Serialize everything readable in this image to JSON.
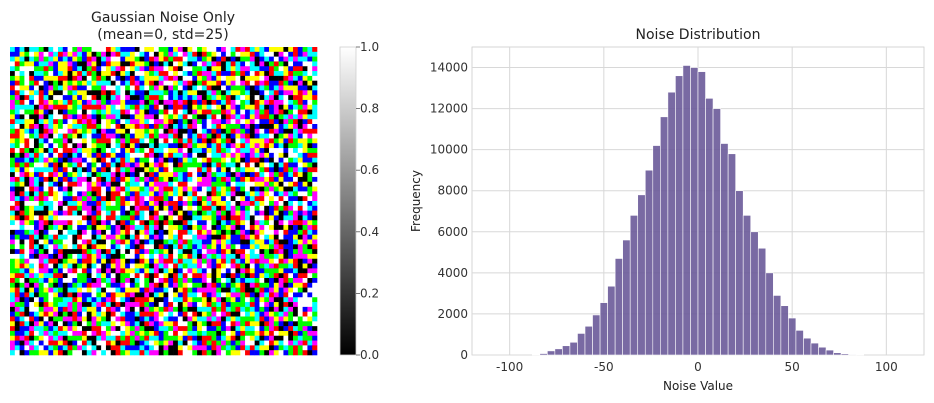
{
  "left_panel": {
    "title_line1": "Gaussian Noise Only",
    "title_line2": "(mean=0, std=25)",
    "image": {
      "description": "RGB gaussian noise image",
      "palette": [
        "#ff0000",
        "#00ff00",
        "#0000ff",
        "#ffff00",
        "#ff00ff",
        "#00ffff",
        "#ffffff",
        "#000000"
      ]
    },
    "colorbar": {
      "ticks": [
        "0.0",
        "0.2",
        "0.4",
        "0.6",
        "0.8",
        "1.0"
      ],
      "values": [
        0.0,
        0.2,
        0.4,
        0.6,
        0.8,
        1.0
      ]
    }
  },
  "chart_data": {
    "type": "bar",
    "title": "Noise Distribution",
    "xlabel": "Noise Value",
    "ylabel": "Frequency",
    "xlim": [
      -120,
      120
    ],
    "ylim": [
      0,
      15000
    ],
    "xticks": [
      -100,
      -50,
      0,
      50,
      100
    ],
    "yticks": [
      0,
      2000,
      4000,
      6000,
      8000,
      10000,
      12000,
      14000
    ],
    "grid": true,
    "bar_color": "#6a5a99",
    "bin_edges": [
      -88,
      -84,
      -80,
      -76,
      -72,
      -68,
      -64,
      -60,
      -56,
      -52,
      -48,
      -44,
      -40,
      -36,
      -32,
      -28,
      -24,
      -20,
      -16,
      -12,
      -8,
      -4,
      0,
      4,
      8,
      12,
      16,
      20,
      24,
      28,
      32,
      36,
      40,
      44,
      48,
      52,
      56,
      60,
      64,
      68,
      72,
      76,
      80,
      84,
      88
    ],
    "counts": [
      20,
      70,
      200,
      300,
      450,
      620,
      1050,
      1400,
      1950,
      2550,
      3350,
      4700,
      5600,
      6800,
      7800,
      9000,
      10200,
      11600,
      12800,
      13600,
      14100,
      14000,
      13800,
      12500,
      12000,
      10300,
      9800,
      8000,
      6800,
      6000,
      5200,
      4000,
      2900,
      2400,
      1800,
      1200,
      820,
      580,
      380,
      240,
      110,
      60,
      30,
      10
    ]
  }
}
